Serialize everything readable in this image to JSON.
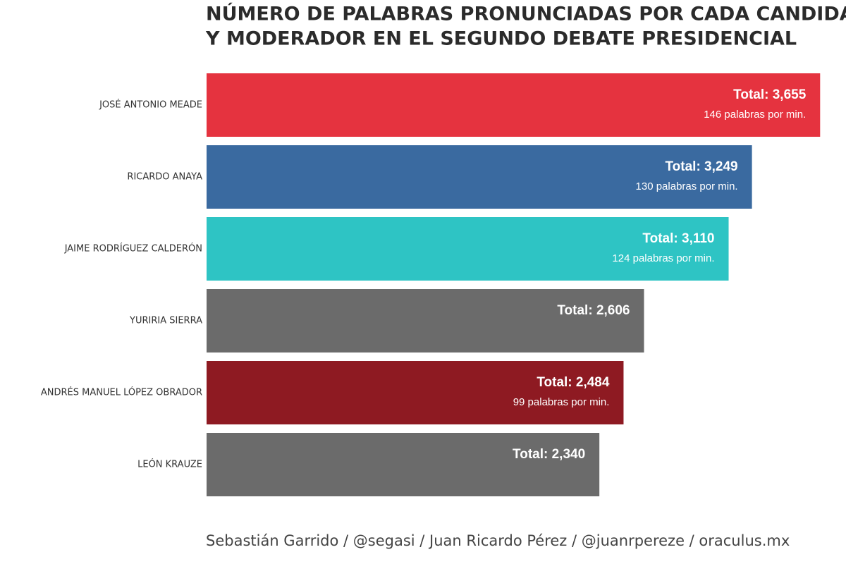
{
  "chart_data": {
    "type": "bar",
    "orientation": "horizontal",
    "title": [
      "NÚMERO DE PALABRAS PRONUNCIADAS POR CADA CANDIDATO",
      "Y MODERADOR EN EL SEGUNDO DEBATE PRESIDENCIAL"
    ],
    "categories": [
      "JOSÉ ANTONIO MEADE",
      "RICARDO ANAYA",
      "JAIME RODRÍGUEZ CALDERÓN",
      "YURIRIA SIERRA",
      "ANDRÉS MANUEL LÓPEZ OBRADOR",
      "LEÓN KRAUZE"
    ],
    "values": [
      3655,
      3249,
      3110,
      2606,
      2484,
      2340
    ],
    "value_labels": [
      "Total: 3,655",
      "Total: 3,249",
      "Total: 3,110",
      "Total: 2,606",
      "Total: 2,484",
      "Total: 2,340"
    ],
    "rate_labels": [
      "146 palabras por min.",
      "130 palabras por min.",
      "124 palabras por min.",
      null,
      "99 palabras por min.",
      null
    ],
    "colors": [
      "#e5333f",
      "#3a6aa0",
      "#2ec4c4",
      "#6b6b6b",
      "#8e1a22",
      "#6b6b6b"
    ],
    "xlim": [
      0,
      3700
    ],
    "source": "Sebastián Garrido / @segasi / Juan Ricardo Pérez / @juanrpereze / oraculus.mx"
  }
}
